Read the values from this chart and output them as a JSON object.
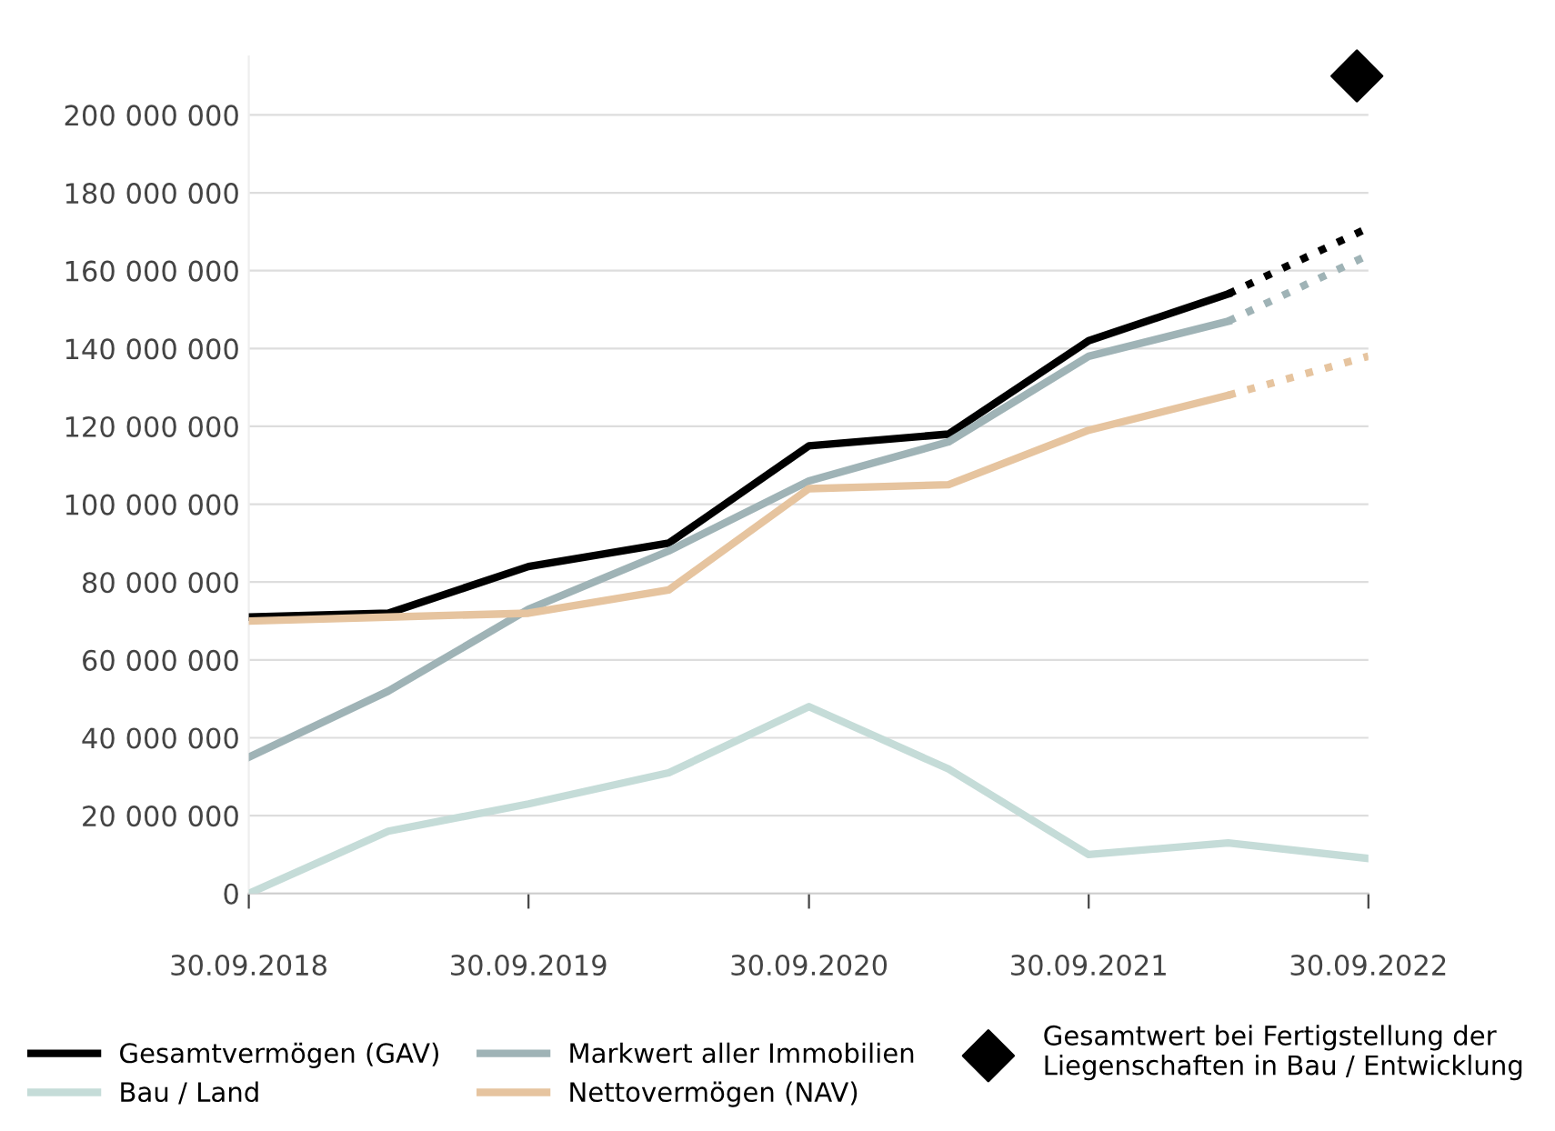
{
  "chart_data": {
    "type": "line",
    "ylim": [
      0,
      215000000
    ],
    "yticks": [
      {
        "value": 0,
        "label": "0"
      },
      {
        "value": 20000000,
        "label": "20 000 000"
      },
      {
        "value": 40000000,
        "label": "40 000 000"
      },
      {
        "value": 60000000,
        "label": "60 000 000"
      },
      {
        "value": 80000000,
        "label": "80 000 000"
      },
      {
        "value": 100000000,
        "label": "100 000 000"
      },
      {
        "value": 120000000,
        "label": "120 000 000"
      },
      {
        "value": 140000000,
        "label": "140 000 000"
      },
      {
        "value": 160000000,
        "label": "160 000 000"
      },
      {
        "value": 180000000,
        "label": "180 000 000"
      },
      {
        "value": 200000000,
        "label": "200 000 000"
      }
    ],
    "xlim": [
      "2018-09-30",
      "2022-09-30"
    ],
    "xticks": [
      {
        "value": "2018-09-30",
        "label": "30.09.2018"
      },
      {
        "value": "2019-09-30",
        "label": "30.09.2019"
      },
      {
        "value": "2020-09-30",
        "label": "30.09.2020"
      },
      {
        "value": "2021-09-30",
        "label": "30.09.2021"
      },
      {
        "value": "2022-09-30",
        "label": "30.09.2022"
      }
    ],
    "grid": "y",
    "legend": "bottom",
    "marker": "none",
    "series": [
      {
        "name": "Gesamtvermögen (GAV)",
        "color": "#000000",
        "line_style": "solid",
        "x": [
          "2018-09-30",
          "2019-03-31",
          "2019-09-30",
          "2020-03-31",
          "2020-09-30",
          "2021-03-31",
          "2021-09-30",
          "2022-03-31"
        ],
        "values": [
          71000000,
          72000000,
          84000000,
          90000000,
          115000000,
          118000000,
          142000000,
          154000000
        ]
      },
      {
        "name": "Markwert aller Immobilien",
        "color": "#9fb3b6",
        "line_style": "solid",
        "x": [
          "2018-09-30",
          "2019-03-31",
          "2019-09-30",
          "2020-03-31",
          "2020-09-30",
          "2021-03-31",
          "2021-09-30",
          "2022-03-31"
        ],
        "values": [
          35000000,
          52000000,
          73000000,
          88000000,
          106000000,
          116000000,
          138000000,
          147000000
        ]
      },
      {
        "name": "Gesamtwert bei Fertigstellung der Liegenschaften in Bau / Entwicklung",
        "type": "scatter",
        "marker": "diamond",
        "color": "#000000",
        "x": [
          "2022-09-15"
        ],
        "values": [
          210000000
        ]
      },
      {
        "name": "Bau / Land",
        "color": "#c5dcd8",
        "line_style": "solid",
        "x": [
          "2018-09-30",
          "2019-03-31",
          "2019-09-30",
          "2020-03-31",
          "2020-09-30",
          "2021-03-31",
          "2021-09-30",
          "2022-03-31",
          "2022-09-30"
        ],
        "values": [
          0,
          16000000,
          23000000,
          31000000,
          48000000,
          32000000,
          10000000,
          13000000,
          9000000
        ]
      },
      {
        "name": "Nettovermögen (NAV)",
        "color": "#e6c49f",
        "line_style": "solid",
        "x": [
          "2018-09-30",
          "2019-03-31",
          "2019-09-30",
          "2020-03-31",
          "2020-09-30",
          "2021-03-31",
          "2021-09-30",
          "2022-03-31"
        ],
        "values": [
          70000000,
          71000000,
          72000000,
          78000000,
          104000000,
          105000000,
          119000000,
          128000000
        ]
      },
      {
        "color": "#000000",
        "line_style": "dotted",
        "x": [
          "2022-03-31",
          "2022-09-30"
        ],
        "values": [
          154000000,
          171000000
        ]
      },
      {
        "color": "#9fb3b6",
        "line_style": "dotted",
        "x": [
          "2022-03-31",
          "2022-09-30"
        ],
        "values": [
          147000000,
          164000000
        ]
      },
      {
        "color": "#e6c49f",
        "line_style": "dotted",
        "x": [
          "2022-03-31",
          "2022-09-30"
        ],
        "values": [
          128000000,
          138000000
        ]
      }
    ]
  }
}
